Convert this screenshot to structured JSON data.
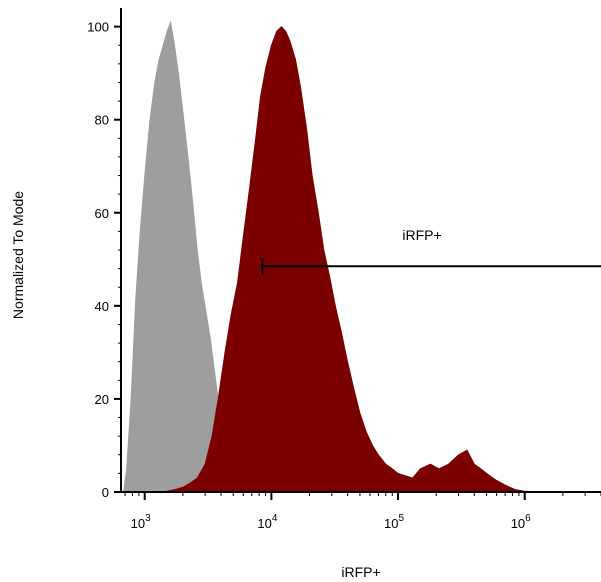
{
  "chart_data": {
    "type": "area",
    "xlabel": "iRFP+",
    "ylabel": "Normalized To Mode",
    "x_scale": "log",
    "xlim": [
      650,
      4000000
    ],
    "ylim": [
      0,
      104
    ],
    "y_ticks": [
      0,
      20,
      40,
      60,
      80,
      100
    ],
    "x_ticks": [
      {
        "value": 1000,
        "base": "10",
        "exp": "3"
      },
      {
        "value": 10000,
        "base": "10",
        "exp": "4"
      },
      {
        "value": 100000,
        "base": "10",
        "exp": "5"
      },
      {
        "value": 1000000,
        "base": "10",
        "exp": "6"
      }
    ],
    "series": [
      {
        "color": "#9e9e9e",
        "x": [
          680,
          720,
          780,
          850,
          920,
          1000,
          1100,
          1200,
          1300,
          1400,
          1500,
          1600,
          1700,
          1850,
          2000,
          2200,
          2400,
          2600,
          2800,
          3000,
          3300,
          3600,
          4000,
          4400,
          4800,
          5300
        ],
        "values": [
          0,
          5,
          20,
          42,
          56,
          68,
          80,
          88,
          93,
          96,
          99,
          101,
          97,
          90,
          82,
          72,
          62,
          52,
          45,
          40,
          33,
          25,
          15,
          7,
          2,
          0
        ]
      },
      {
        "color": "#7b0000",
        "x": [
          1400,
          1700,
          2000,
          2300,
          2600,
          3000,
          3400,
          3800,
          4300,
          4800,
          5400,
          6000,
          6700,
          7500,
          8200,
          9000,
          10000,
          11000,
          12000,
          13000,
          14000,
          15500,
          17000,
          19000,
          21000,
          23500,
          26000,
          29000,
          32000,
          36000,
          40000,
          45000,
          50000,
          56000,
          63000,
          70000,
          80000,
          90000,
          100000,
          115000,
          130000,
          150000,
          180000,
          210000,
          250000,
          300000,
          350000,
          400000,
          450000,
          500000,
          600000,
          700000,
          850000,
          1000000,
          1300000,
          2000000,
          4000000
        ],
        "values": [
          0,
          0.5,
          1,
          2,
          3,
          6,
          12,
          20,
          30,
          38,
          45,
          55,
          65,
          76,
          85,
          91,
          96,
          99,
          100,
          99,
          97,
          93,
          87,
          78,
          68,
          60,
          52,
          46,
          40,
          34,
          28,
          22,
          17,
          13,
          10,
          8,
          6,
          5,
          4,
          3.5,
          3,
          5,
          6,
          5,
          6,
          8,
          9,
          6,
          5,
          4,
          2.5,
          1.5,
          0.5,
          0.2,
          0,
          0,
          0
        ]
      }
    ],
    "annotations": [
      {
        "text": "iRFP+",
        "gate_x_start": 8500,
        "gate_x_end": 4000000,
        "gate_y": 48.5
      }
    ]
  }
}
